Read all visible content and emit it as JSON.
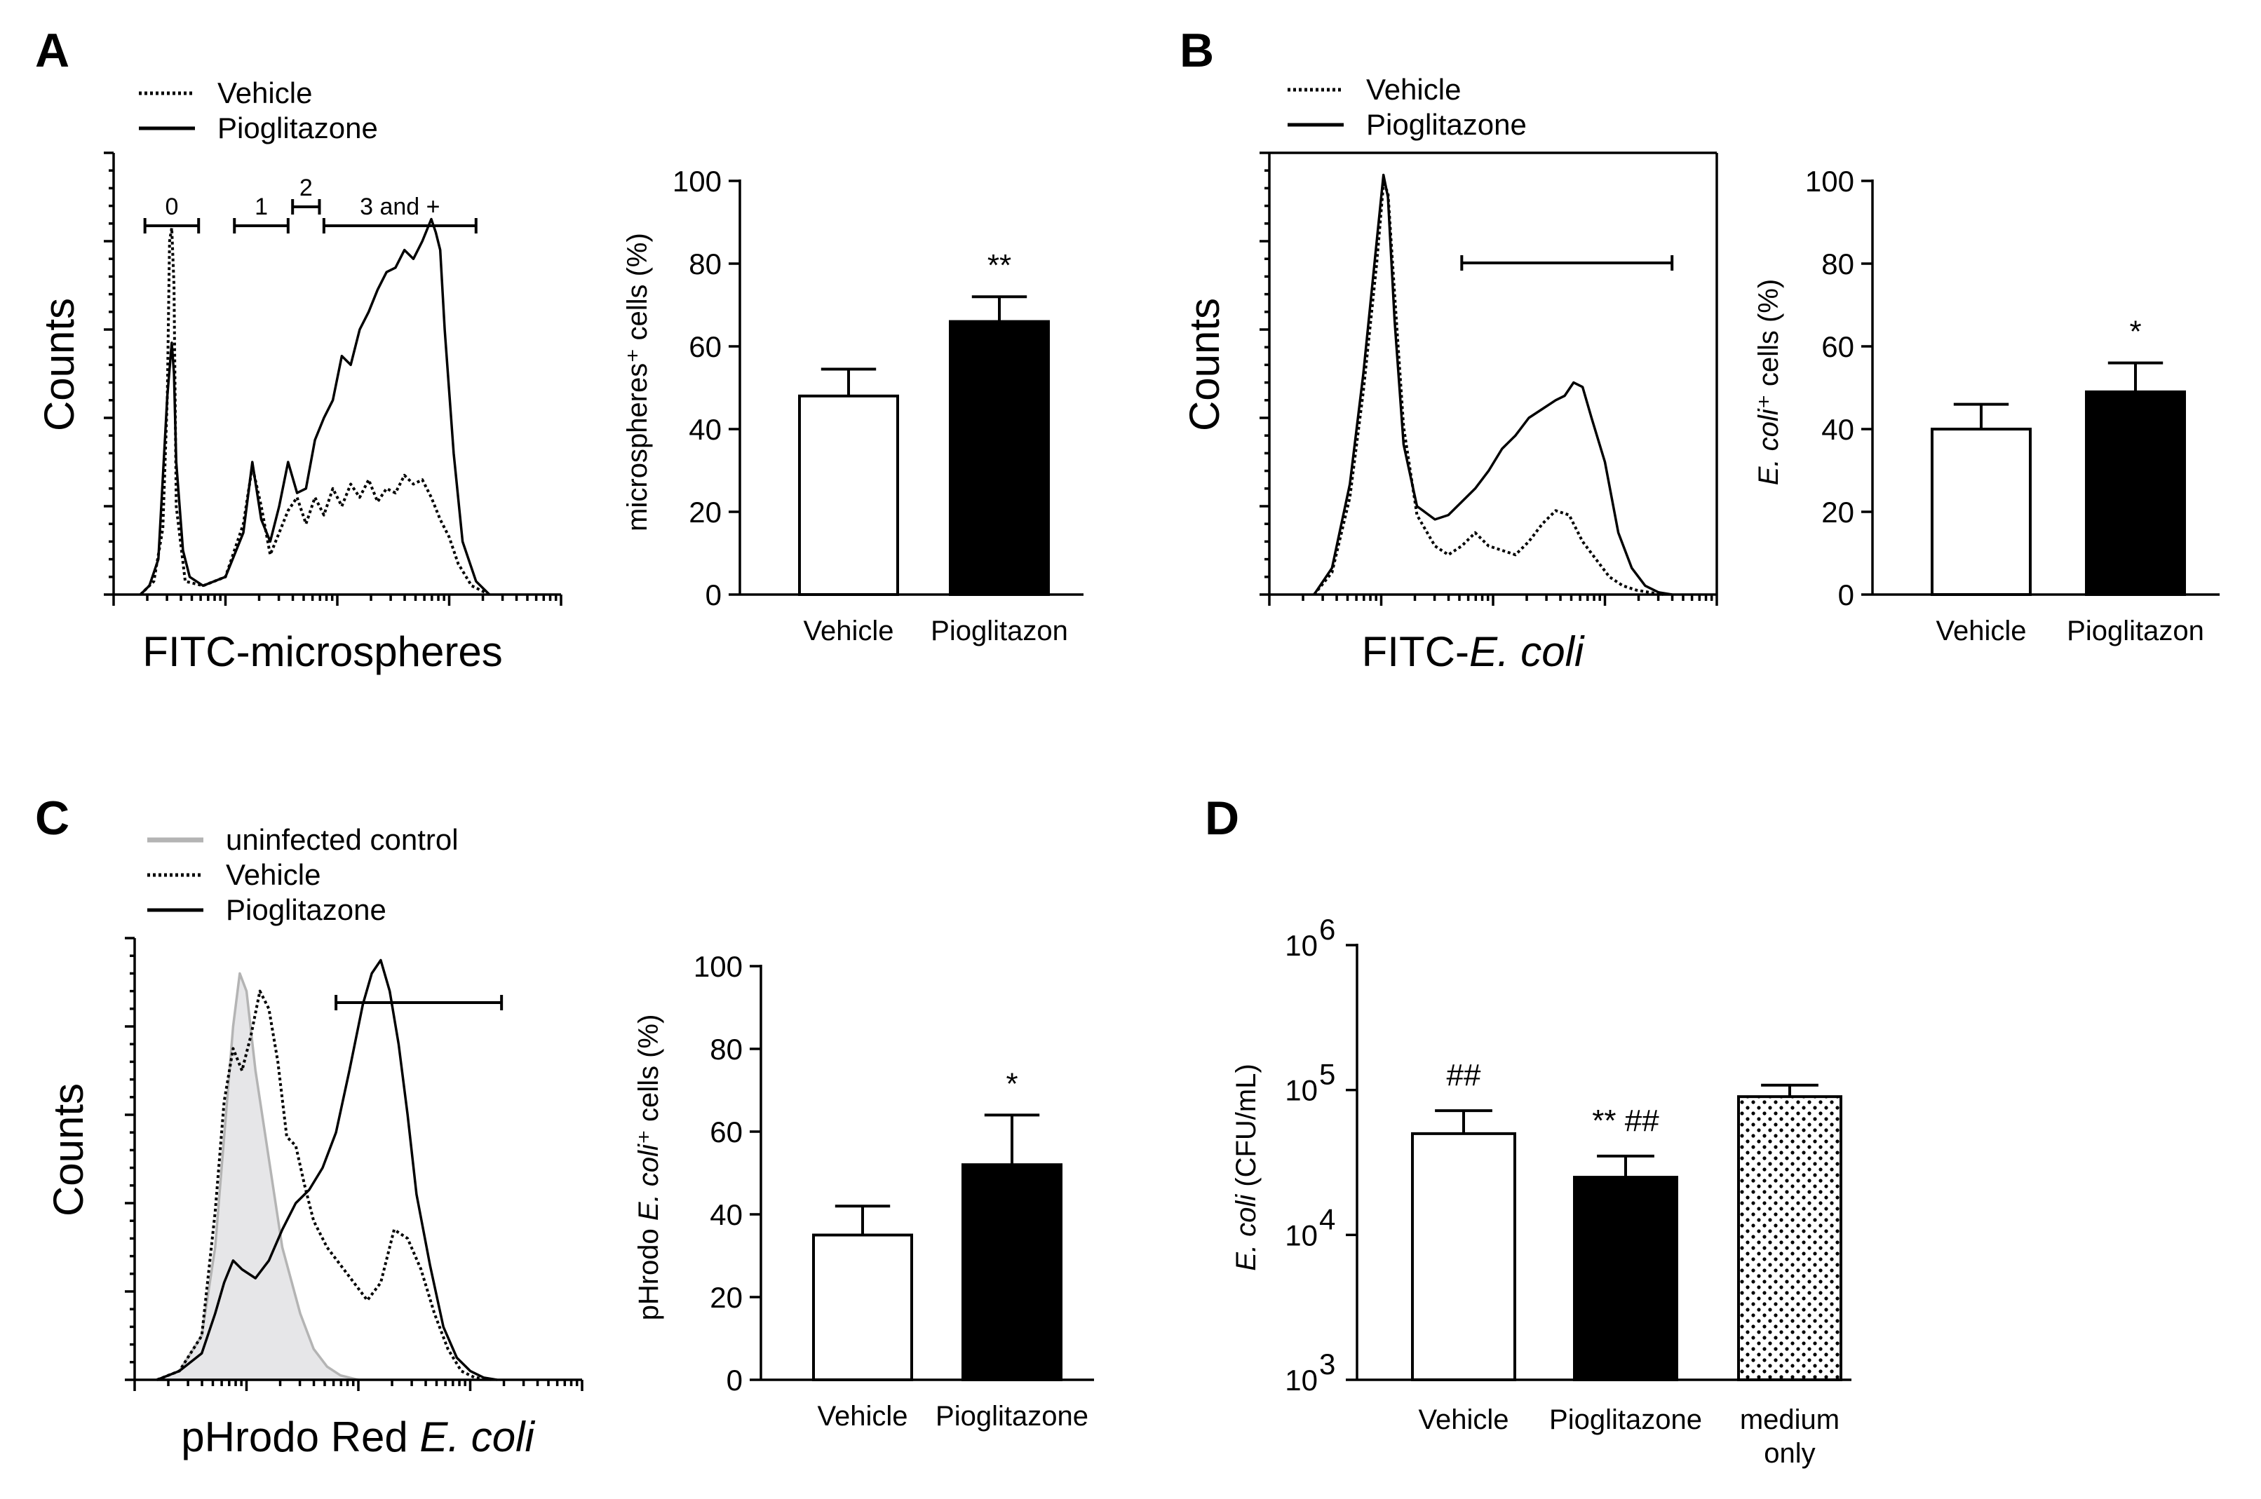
{
  "colors": {
    "ink": "#000000",
    "paper": "#ffffff",
    "control_fill": "#e6e6e8",
    "control_line": "#b4b4b4"
  },
  "panels": {
    "A": {
      "letter": "A"
    },
    "B": {
      "letter": "B"
    },
    "C": {
      "letter": "C"
    },
    "D": {
      "letter": "D"
    }
  },
  "chart_data": [
    {
      "id": "A-histogram",
      "type": "line",
      "xlabel": "FITC-microspheres",
      "ylabel": "Counts",
      "x_scale": "log",
      "legend": {
        "placement": "top-left",
        "entries": [
          {
            "name": "Vehicle",
            "style": "dotted"
          },
          {
            "name": "Pioglitazone",
            "style": "solid"
          }
        ]
      },
      "gates": [
        {
          "label": "0",
          "from": 0.07,
          "to": 0.19
        },
        {
          "label": "1",
          "from": 0.27,
          "to": 0.39
        },
        {
          "label": "2",
          "from": 0.4,
          "to": 0.46
        },
        {
          "label": "3 and +",
          "from": 0.47,
          "to": 0.81
        }
      ],
      "series": [
        {
          "name": "Vehicle",
          "style": "dotted",
          "x": [
            0.06,
            0.09,
            0.11,
            0.12,
            0.125,
            0.13,
            0.135,
            0.14,
            0.16,
            0.2,
            0.25,
            0.29,
            0.31,
            0.33,
            0.35,
            0.37,
            0.39,
            0.41,
            0.43,
            0.45,
            0.47,
            0.49,
            0.51,
            0.53,
            0.55,
            0.57,
            0.59,
            0.61,
            0.63,
            0.65,
            0.67,
            0.69,
            0.71,
            0.73,
            0.75,
            0.77,
            0.8,
            0.84
          ],
          "y": [
            0.0,
            0.03,
            0.15,
            0.45,
            0.8,
            0.83,
            0.7,
            0.2,
            0.03,
            0.02,
            0.04,
            0.16,
            0.29,
            0.2,
            0.09,
            0.14,
            0.19,
            0.22,
            0.16,
            0.22,
            0.18,
            0.24,
            0.2,
            0.25,
            0.22,
            0.26,
            0.21,
            0.24,
            0.23,
            0.27,
            0.25,
            0.26,
            0.22,
            0.17,
            0.13,
            0.07,
            0.02,
            0.0
          ]
        },
        {
          "name": "Pioglitazone",
          "style": "solid",
          "x": [
            0.06,
            0.08,
            0.1,
            0.12,
            0.13,
            0.135,
            0.14,
            0.155,
            0.17,
            0.2,
            0.25,
            0.29,
            0.31,
            0.33,
            0.35,
            0.37,
            0.39,
            0.41,
            0.43,
            0.45,
            0.47,
            0.49,
            0.51,
            0.53,
            0.55,
            0.57,
            0.59,
            0.61,
            0.63,
            0.65,
            0.67,
            0.69,
            0.71,
            0.72,
            0.73,
            0.74,
            0.76,
            0.78,
            0.81,
            0.84
          ],
          "y": [
            0.0,
            0.02,
            0.08,
            0.45,
            0.57,
            0.5,
            0.3,
            0.1,
            0.04,
            0.02,
            0.04,
            0.14,
            0.3,
            0.17,
            0.12,
            0.2,
            0.3,
            0.23,
            0.24,
            0.35,
            0.4,
            0.44,
            0.54,
            0.52,
            0.6,
            0.64,
            0.69,
            0.73,
            0.74,
            0.78,
            0.76,
            0.8,
            0.85,
            0.82,
            0.78,
            0.6,
            0.32,
            0.12,
            0.03,
            0.0
          ]
        }
      ]
    },
    {
      "id": "A-bar",
      "type": "bar",
      "ylabel": "microspheres⁺ cells (%)",
      "ylim": [
        0,
        100
      ],
      "yticks": [
        0,
        20,
        40,
        60,
        80,
        100
      ],
      "categories": [
        "Vehicle",
        "Pioglitazon"
      ],
      "values": [
        48,
        66
      ],
      "errors": [
        6.5,
        6
      ],
      "fills": [
        "#ffffff",
        "#000000"
      ],
      "annotations": [
        "",
        "**"
      ]
    },
    {
      "id": "B-histogram",
      "type": "line",
      "xlabel_prefix": "FITC-",
      "xlabel_italic": "E. coli",
      "ylabel": "Counts",
      "x_scale": "log",
      "legend": {
        "placement": "top-left",
        "entries": [
          {
            "name": "Vehicle",
            "style": "dotted"
          },
          {
            "name": "Pioglitazone",
            "style": "solid"
          }
        ]
      },
      "gates": [
        {
          "label": "",
          "from": 0.43,
          "to": 0.9
        }
      ],
      "series": [
        {
          "name": "Vehicle",
          "style": "dotted",
          "x": [
            0.1,
            0.14,
            0.18,
            0.21,
            0.24,
            0.255,
            0.265,
            0.28,
            0.3,
            0.33,
            0.37,
            0.4,
            0.43,
            0.46,
            0.49,
            0.52,
            0.55,
            0.58,
            0.61,
            0.64,
            0.67,
            0.7,
            0.73,
            0.76,
            0.79,
            0.82,
            0.85,
            0.88
          ],
          "y": [
            0.0,
            0.05,
            0.22,
            0.46,
            0.75,
            0.93,
            0.91,
            0.68,
            0.38,
            0.18,
            0.11,
            0.09,
            0.11,
            0.14,
            0.11,
            0.1,
            0.09,
            0.12,
            0.16,
            0.19,
            0.18,
            0.12,
            0.08,
            0.04,
            0.02,
            0.01,
            0.005,
            0.0
          ]
        },
        {
          "name": "Pioglitazone",
          "style": "solid",
          "x": [
            0.1,
            0.14,
            0.18,
            0.21,
            0.24,
            0.255,
            0.265,
            0.28,
            0.3,
            0.33,
            0.37,
            0.4,
            0.43,
            0.46,
            0.49,
            0.52,
            0.55,
            0.58,
            0.61,
            0.64,
            0.66,
            0.68,
            0.7,
            0.72,
            0.75,
            0.78,
            0.81,
            0.84,
            0.87,
            0.9
          ],
          "y": [
            0.0,
            0.06,
            0.25,
            0.5,
            0.8,
            0.95,
            0.9,
            0.62,
            0.34,
            0.2,
            0.17,
            0.18,
            0.21,
            0.24,
            0.28,
            0.33,
            0.36,
            0.4,
            0.42,
            0.44,
            0.45,
            0.48,
            0.47,
            0.4,
            0.3,
            0.14,
            0.06,
            0.02,
            0.005,
            0.0
          ]
        }
      ]
    },
    {
      "id": "B-bar",
      "type": "bar",
      "ylabel_italic": "E. coli",
      "ylabel_rest": "⁺ cells (%)",
      "ylim": [
        0,
        100
      ],
      "yticks": [
        0,
        20,
        40,
        60,
        80,
        100
      ],
      "categories": [
        "Vehicle",
        "Pioglitazon"
      ],
      "values": [
        40,
        49
      ],
      "errors": [
        6,
        7
      ],
      "fills": [
        "#ffffff",
        "#000000"
      ],
      "annotations": [
        "",
        "*"
      ]
    },
    {
      "id": "C-histogram",
      "type": "area",
      "xlabel_prefix": "pHrodo Red ",
      "xlabel_italic": "E. coli",
      "ylabel": "Counts",
      "x_scale": "log",
      "legend": {
        "placement": "top-left",
        "entries": [
          {
            "name": "uninfected control",
            "style": "gray"
          },
          {
            "name": "Vehicle",
            "style": "dotted"
          },
          {
            "name": "Pioglitazone",
            "style": "solid"
          }
        ]
      },
      "gates": [
        {
          "label": "",
          "from": 0.45,
          "to": 0.82
        }
      ],
      "series": [
        {
          "name": "uninfected control",
          "style": "gray",
          "x": [
            0.05,
            0.1,
            0.15,
            0.18,
            0.2,
            0.22,
            0.235,
            0.25,
            0.27,
            0.3,
            0.33,
            0.37,
            0.4,
            0.43,
            0.46,
            0.5
          ],
          "y": [
            0.0,
            0.02,
            0.1,
            0.3,
            0.55,
            0.8,
            0.92,
            0.88,
            0.7,
            0.5,
            0.3,
            0.15,
            0.07,
            0.03,
            0.01,
            0.0
          ]
        },
        {
          "name": "Vehicle",
          "style": "dotted",
          "x": [
            0.05,
            0.1,
            0.15,
            0.18,
            0.2,
            0.22,
            0.24,
            0.26,
            0.28,
            0.3,
            0.32,
            0.34,
            0.36,
            0.38,
            0.4,
            0.43,
            0.46,
            0.49,
            0.52,
            0.55,
            0.58,
            0.61,
            0.64,
            0.67,
            0.7,
            0.73,
            0.76,
            0.8
          ],
          "y": [
            0.0,
            0.02,
            0.1,
            0.38,
            0.63,
            0.75,
            0.7,
            0.78,
            0.88,
            0.84,
            0.72,
            0.55,
            0.53,
            0.44,
            0.36,
            0.3,
            0.26,
            0.22,
            0.18,
            0.22,
            0.34,
            0.32,
            0.25,
            0.15,
            0.07,
            0.02,
            0.005,
            0.0
          ]
        },
        {
          "name": "Pioglitazone",
          "style": "solid",
          "x": [
            0.05,
            0.1,
            0.15,
            0.18,
            0.2,
            0.22,
            0.24,
            0.27,
            0.3,
            0.33,
            0.36,
            0.39,
            0.42,
            0.45,
            0.48,
            0.51,
            0.53,
            0.55,
            0.57,
            0.59,
            0.61,
            0.63,
            0.66,
            0.69,
            0.72,
            0.75,
            0.78,
            0.81
          ],
          "y": [
            0.0,
            0.02,
            0.06,
            0.15,
            0.22,
            0.27,
            0.25,
            0.23,
            0.27,
            0.34,
            0.4,
            0.43,
            0.48,
            0.56,
            0.7,
            0.85,
            0.92,
            0.95,
            0.88,
            0.76,
            0.6,
            0.42,
            0.26,
            0.12,
            0.05,
            0.02,
            0.005,
            0.0
          ]
        }
      ]
    },
    {
      "id": "C-bar",
      "type": "bar",
      "ylabel_prefix": "pHrodo ",
      "ylabel_italic": "E. coli",
      "ylabel_rest": "⁺ cells (%)",
      "ylim": [
        0,
        100
      ],
      "yticks": [
        0,
        20,
        40,
        60,
        80,
        100
      ],
      "categories": [
        "Vehicle",
        "Pioglitazone"
      ],
      "values": [
        35,
        52
      ],
      "errors": [
        7,
        12
      ],
      "fills": [
        "#ffffff",
        "#000000"
      ],
      "annotations": [
        "",
        "*"
      ]
    },
    {
      "id": "D-bar",
      "type": "bar",
      "ylabel_italic": "E. coli",
      "ylabel_rest": " (CFU/mL)",
      "y_scale": "log",
      "ylim": [
        1000,
        1000000
      ],
      "yticks": [
        {
          "value": 1000,
          "base": "10",
          "exp": "3"
        },
        {
          "value": 10000,
          "base": "10",
          "exp": "4"
        },
        {
          "value": 100000,
          "base": "10",
          "exp": "5"
        },
        {
          "value": 1000000,
          "base": "10",
          "exp": "6"
        }
      ],
      "categories": [
        "Vehicle",
        "Pioglitazone",
        "medium only"
      ],
      "category_lines": [
        [
          "Vehicle"
        ],
        [
          "Pioglitazone"
        ],
        [
          "medium",
          "only"
        ]
      ],
      "values": [
        50000,
        25000,
        90000
      ],
      "error_tops": [
        72000,
        35000,
        108000
      ],
      "fills": [
        "#ffffff",
        "#000000",
        "dots"
      ],
      "annotations": [
        "##",
        "** ##",
        ""
      ]
    }
  ]
}
